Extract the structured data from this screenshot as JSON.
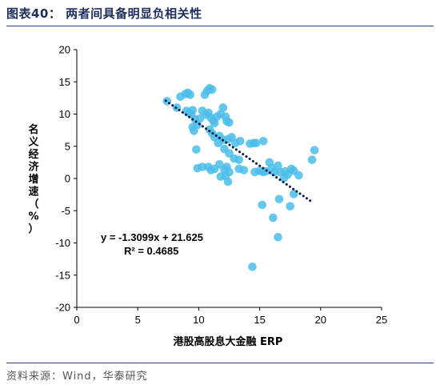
{
  "figure_title": "图表40：   两者间具备明显负相关性",
  "source_note": "资料来源：Wind，华泰研究",
  "chart_data": {
    "type": "scatter",
    "xlabel": "港股高股息大金融 ERP",
    "ylabel": "名义经济增速（%）",
    "xlim": [
      0,
      25
    ],
    "ylim": [
      -20,
      20
    ],
    "x_ticks": [
      "0",
      "5",
      "10",
      "15",
      "20",
      "25"
    ],
    "y_ticks": [
      "20",
      "15",
      "10",
      "5",
      "0",
      "-5",
      "-10",
      "-15",
      "-20"
    ],
    "trendline": {
      "slope": -1.3099,
      "intercept": 21.625,
      "x_range": [
        7.3,
        19.3
      ],
      "style": "dotted",
      "color": "#0b1f4d"
    },
    "annotation": {
      "equation": "y = -1.3099x + 21.625",
      "r2": "R² = 0.4685"
    },
    "marker_color": "#4bbde9",
    "points": [
      [
        7.4,
        12.0
      ],
      [
        8.2,
        11.0
      ],
      [
        8.5,
        12.7
      ],
      [
        8.9,
        13.1
      ],
      [
        9.1,
        13.3
      ],
      [
        9.3,
        13.0
      ],
      [
        9.0,
        10.5
      ],
      [
        9.2,
        10.2
      ],
      [
        9.4,
        10.0
      ],
      [
        9.5,
        10.6
      ],
      [
        9.7,
        9.2
      ],
      [
        9.5,
        8.0
      ],
      [
        9.6,
        7.4
      ],
      [
        9.9,
        8.3
      ],
      [
        10.1,
        9.3
      ],
      [
        10.3,
        10.5
      ],
      [
        10.5,
        13.0
      ],
      [
        10.7,
        13.6
      ],
      [
        10.9,
        14.0
      ],
      [
        11.1,
        13.8
      ],
      [
        10.6,
        9.9
      ],
      [
        10.8,
        10.2
      ],
      [
        11.0,
        9.4
      ],
      [
        11.2,
        9.0
      ],
      [
        11.3,
        8.6
      ],
      [
        11.5,
        9.6
      ],
      [
        11.8,
        10.0
      ],
      [
        12.0,
        11.0
      ],
      [
        12.2,
        9.6
      ],
      [
        12.3,
        8.9
      ],
      [
        12.5,
        8.7
      ],
      [
        10.9,
        7.6
      ],
      [
        11.1,
        7.0
      ],
      [
        11.3,
        6.4
      ],
      [
        11.7,
        6.6
      ],
      [
        12.0,
        6.0
      ],
      [
        12.4,
        6.1
      ],
      [
        12.7,
        6.4
      ],
      [
        13.0,
        5.5
      ],
      [
        13.4,
        5.8
      ],
      [
        11.6,
        5.5
      ],
      [
        12.1,
        4.6
      ],
      [
        12.5,
        3.9
      ],
      [
        12.9,
        3.1
      ],
      [
        13.3,
        2.9
      ],
      [
        9.8,
        4.5
      ],
      [
        10.3,
        1.8
      ],
      [
        9.9,
        1.6
      ],
      [
        10.8,
        1.8
      ],
      [
        11.0,
        1.3
      ],
      [
        11.3,
        1.5
      ],
      [
        11.7,
        2.2
      ],
      [
        12.1,
        1.4
      ],
      [
        12.3,
        1.8
      ],
      [
        12.5,
        1.0
      ],
      [
        12.2,
        0.4
      ],
      [
        11.8,
        0.3
      ],
      [
        12.4,
        -0.5
      ],
      [
        13.3,
        1.5
      ],
      [
        13.7,
        1.3
      ],
      [
        14.2,
        5.4
      ],
      [
        14.5,
        5.5
      ],
      [
        14.7,
        5.5
      ],
      [
        15.3,
        5.8
      ],
      [
        14.6,
        1.0
      ],
      [
        15.0,
        1.2
      ],
      [
        15.3,
        1.0
      ],
      [
        15.5,
        1.1
      ],
      [
        15.8,
        2.5
      ],
      [
        16.0,
        1.6
      ],
      [
        16.2,
        1.0
      ],
      [
        16.5,
        2.0
      ],
      [
        16.7,
        1.0
      ],
      [
        17.1,
        1.1
      ],
      [
        17.3,
        0.6
      ],
      [
        17.6,
        1.5
      ],
      [
        17.8,
        1.2
      ],
      [
        18.2,
        0.5
      ],
      [
        19.3,
        2.9
      ],
      [
        19.5,
        4.4
      ],
      [
        15.2,
        -4.1
      ],
      [
        16.1,
        -6.1
      ],
      [
        16.6,
        -3.2
      ],
      [
        17.0,
        0.1
      ],
      [
        17.5,
        -4.3
      ],
      [
        17.8,
        -2.4
      ],
      [
        16.5,
        -9.1
      ],
      [
        14.4,
        -13.7
      ]
    ]
  }
}
